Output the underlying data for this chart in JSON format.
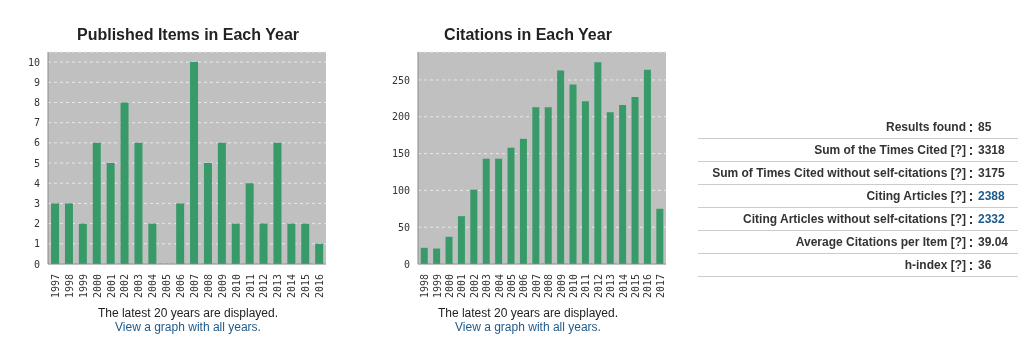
{
  "chart_data": [
    {
      "type": "bar",
      "title": "Published Items in Each Year",
      "categories": [
        "1997",
        "1998",
        "1999",
        "2000",
        "2001",
        "2002",
        "2003",
        "2004",
        "2005",
        "2006",
        "2007",
        "2008",
        "2009",
        "2010",
        "2011",
        "2012",
        "2013",
        "2014",
        "2015",
        "2016"
      ],
      "series": [
        {
          "color": "#389a68",
          "values": [
            3,
            3,
            2,
            6,
            5,
            8,
            6,
            2,
            0,
            3,
            10,
            5,
            6,
            2,
            4,
            2,
            6,
            2,
            2,
            1
          ]
        }
      ],
      "ylim": [
        0,
        10.5
      ],
      "yticks": [
        0,
        1,
        2,
        3,
        4,
        5,
        6,
        7,
        8,
        9,
        10
      ],
      "grid": "y",
      "annotations": [
        "The latest 20 years are displayed.",
        "View a graph with all years."
      ]
    },
    {
      "type": "bar",
      "title": "Citations in Each Year",
      "categories": [
        "1998",
        "1999",
        "2000",
        "2001",
        "2002",
        "2003",
        "2004",
        "2005",
        "2006",
        "2007",
        "2008",
        "2009",
        "2010",
        "2011",
        "2012",
        "2013",
        "2014",
        "2015",
        "2016",
        "2017"
      ],
      "series": [
        {
          "color": "#389a68",
          "values": [
            22,
            21,
            37,
            65,
            101,
            143,
            143,
            158,
            170,
            213,
            213,
            263,
            244,
            221,
            274,
            206,
            216,
            227,
            264,
            75
          ]
        }
      ],
      "ylim": [
        0,
        288
      ],
      "yticks": [
        0,
        50,
        100,
        150,
        200,
        250
      ],
      "grid": "y",
      "annotations": [
        "The latest 20 years are displayed.",
        "View a graph with all years."
      ]
    },
    {
      "type": "other",
      "categories": [
        "Results found",
        "Sum of the Times Cited [?]",
        "Sum of Times Cited without self-citations [?]",
        "Citing Articles [?]",
        "Citing Articles without self-citations [?]",
        "Average Citations per Item [?]",
        "h-index [?]"
      ],
      "values": [
        85,
        3318,
        3175,
        2388,
        2332,
        39.04,
        36
      ],
      "data_labels": true,
      "colors": [
        "#333333",
        "#333333",
        "#333333",
        "#1f5a8a",
        "#1f5a8a",
        "#333333",
        "#333333"
      ]
    }
  ]
}
